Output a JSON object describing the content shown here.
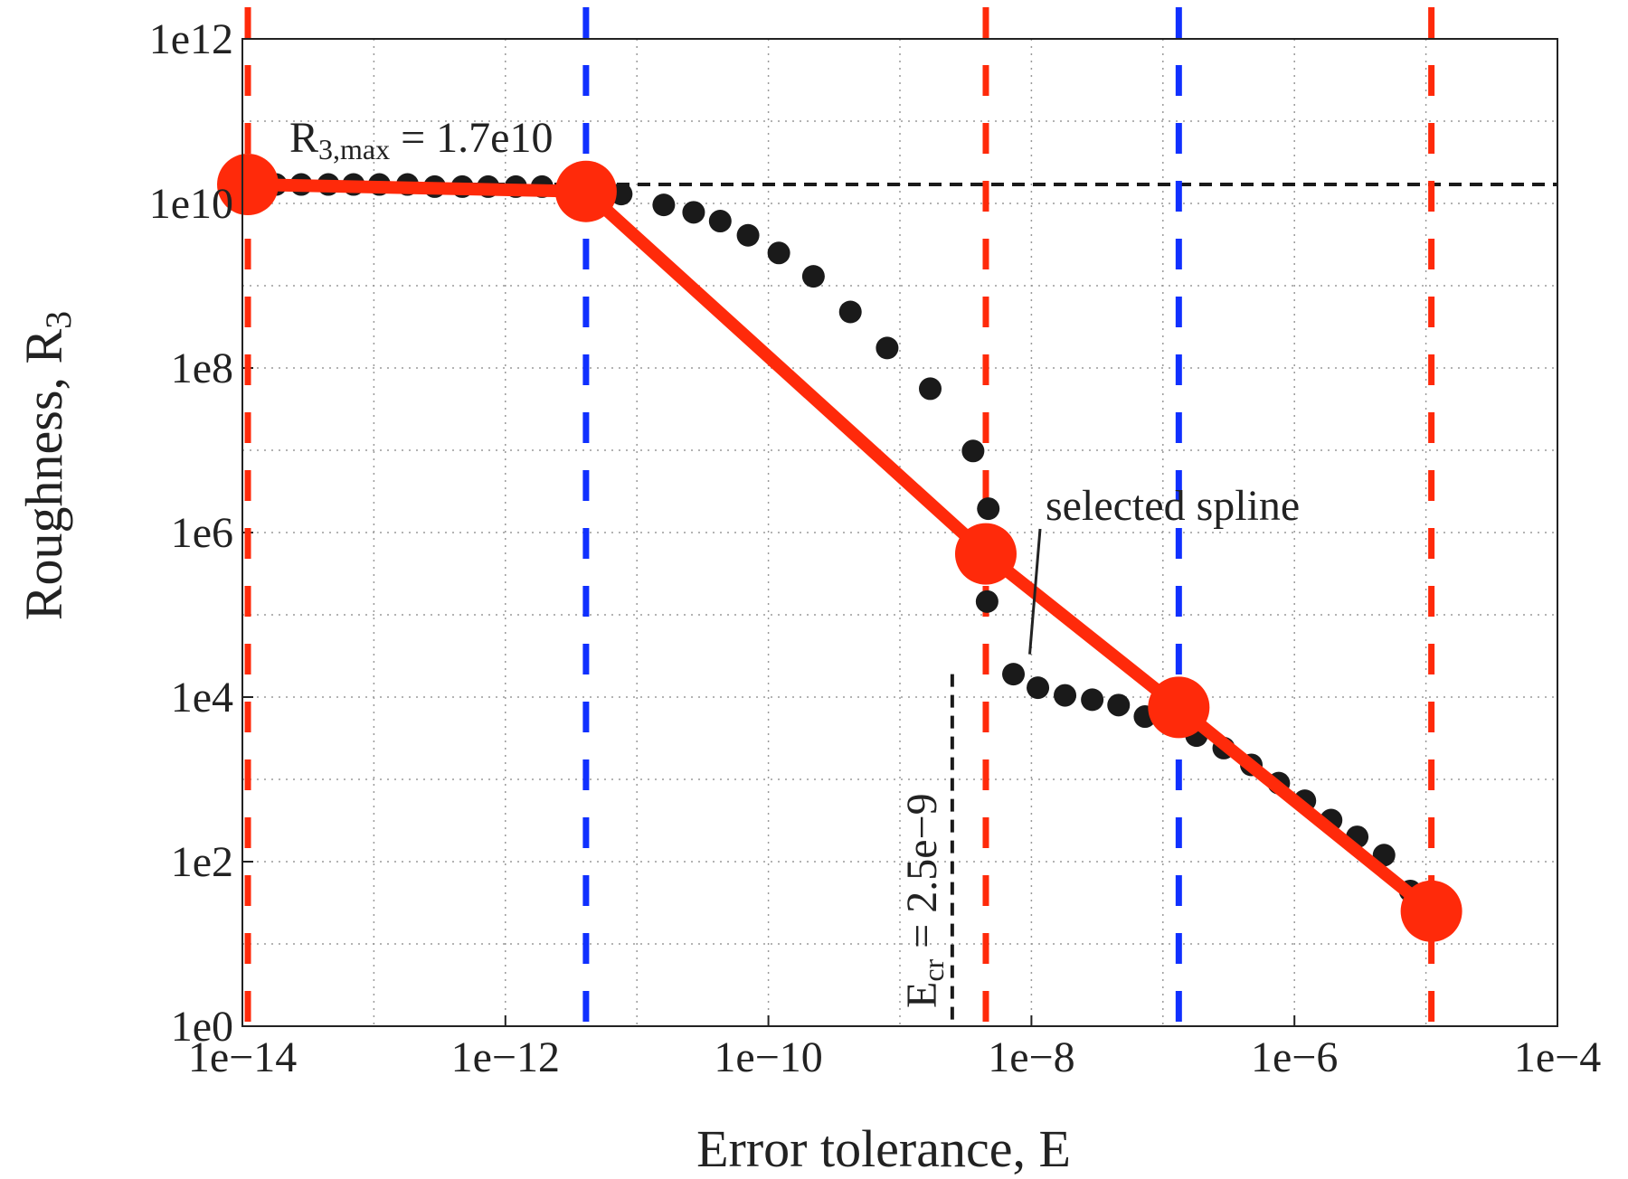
{
  "chart_data": {
    "type": "scatter",
    "title": "",
    "xlabel": "Error tolerance, E",
    "ylabel_main": "Roughness, R",
    "ylabel_sub": "3",
    "x_scale": "log",
    "y_scale": "log",
    "xlim": [
      1e-14,
      0.0001
    ],
    "ylim": [
      1,
      1000000000000.0
    ],
    "grid": true,
    "legend": "none",
    "x_ticks": [
      {
        "value": 1e-14,
        "label": "1e−14"
      },
      {
        "value": 1e-12,
        "label": "1e−12"
      },
      {
        "value": 1e-10,
        "label": "1e−10"
      },
      {
        "value": 1e-08,
        "label": "1e−8"
      },
      {
        "value": 1e-06,
        "label": "1e−6"
      },
      {
        "value": 0.0001,
        "label": "1e−4"
      }
    ],
    "y_ticks": [
      {
        "value": 1,
        "label": "1e0"
      },
      {
        "value": 100.0,
        "label": "1e2"
      },
      {
        "value": 10000.0,
        "label": "1e4"
      },
      {
        "value": 1000000.0,
        "label": "1e6"
      },
      {
        "value": 100000000.0,
        "label": "1e8"
      },
      {
        "value": 10000000000.0,
        "label": "1e10"
      },
      {
        "value": 1000000000000.0,
        "label": "1e12"
      }
    ],
    "colors": {
      "red": "#ff2a0a",
      "blue": "#1030ff",
      "black": "#1a1a1a",
      "grid": "#9a9a9a"
    },
    "series": [
      {
        "kind": "dots",
        "color": "black",
        "points": [
          [
            1.2e-14,
            17000000000.0
          ],
          [
            1.8e-14,
            17000000000.0
          ],
          [
            2.8e-14,
            17000000000.0
          ],
          [
            4.5e-14,
            17000000000.0
          ],
          [
            7e-14,
            17000000000.0
          ],
          [
            1.1e-13,
            17000000000.0
          ],
          [
            1.8e-13,
            17000000000.0
          ],
          [
            2.9e-13,
            16000000000.0
          ],
          [
            4.7e-13,
            16000000000.0
          ],
          [
            7.4e-13,
            16000000000.0
          ],
          [
            1.2e-12,
            16000000000.0
          ],
          [
            1.9e-12,
            16000000000.0
          ],
          [
            3e-12,
            15000000000.0
          ],
          [
            4.8e-12,
            14500000000.0
          ],
          [
            7.6e-12,
            13000000000.0
          ],
          [
            1.6e-11,
            9600000000.0
          ],
          [
            2.7e-11,
            7800000000.0
          ],
          [
            4.3e-11,
            6100000000.0
          ],
          [
            7e-11,
            4100000000.0
          ],
          [
            1.2e-10,
            2500000000.0
          ],
          [
            2.2e-10,
            1300000000.0
          ],
          [
            4.2e-10,
            480000000.0
          ],
          [
            8e-10,
            175000000.0
          ],
          [
            1.7e-09,
            56000000.0
          ],
          [
            3.6e-09,
            9800000.0
          ],
          [
            4.7e-09,
            1950000.0
          ],
          [
            4.6e-09,
            145000.0
          ],
          [
            7.3e-09,
            19000.0
          ],
          [
            1.12e-08,
            13000.0
          ],
          [
            1.8e-08,
            10500.0
          ],
          [
            2.9e-08,
            9300.0
          ],
          [
            4.6e-08,
            8000.0
          ],
          [
            7.3e-08,
            5800.0
          ],
          [
            1.16e-07,
            4800.0
          ],
          [
            1.8e-07,
            3400.0
          ],
          [
            2.9e-07,
            2400.0
          ],
          [
            4.7e-07,
            1500.0
          ],
          [
            7.6e-07,
            900.0
          ],
          [
            1.2e-06,
            550.0
          ],
          [
            1.9e-06,
            320.0
          ],
          [
            3e-06,
            200.0
          ],
          [
            4.8e-06,
            120.0
          ],
          [
            7.6e-06,
            44.0
          ]
        ]
      },
      {
        "kind": "line-markers",
        "color": "red",
        "points": [
          [
            1.1e-14,
            17000000000.0
          ],
          [
            4.1e-12,
            14000000000.0
          ],
          [
            4.5e-09,
            550000.0
          ],
          [
            1.32e-07,
            7500.0
          ],
          [
            1.1e-05,
            25.0
          ]
        ]
      }
    ],
    "vertical_lines": [
      {
        "x": 1.1e-14,
        "color": "red"
      },
      {
        "x": 4.1e-12,
        "color": "blue"
      },
      {
        "x": 4.5e-09,
        "color": "red"
      },
      {
        "x": 1.32e-07,
        "color": "blue"
      },
      {
        "x": 1.1e-05,
        "color": "red"
      }
    ],
    "reference_lines": {
      "r3max_y": 17000000000.0,
      "ecr_x": 2.5e-09
    },
    "annotations": {
      "r3max_main": "R",
      "r3max_sub": "3,max",
      "r3max_value": " = 1.7e10",
      "ecr_main": "E",
      "ecr_sub": "cr",
      "ecr_value": " = 2.5e−9",
      "selected": "selected spline",
      "selected_target": [
        7.3e-09,
        19000.0
      ]
    }
  }
}
